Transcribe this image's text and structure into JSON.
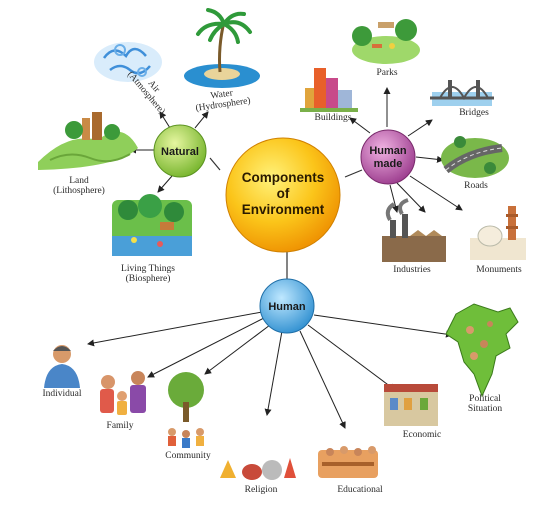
{
  "center": {
    "line1": "Components",
    "line2": "of",
    "line3": "Environment"
  },
  "hubs": {
    "natural": "Natural",
    "human_made_line1": "Human",
    "human_made_line2": "made",
    "human": "Human"
  },
  "natural": {
    "air_line1": "Air",
    "air_line2": "(Atmosphere)",
    "water_line1": "Water",
    "water_line2": "(Hydrosphere)",
    "land_line1": "Land",
    "land_line2": "(Lithosphere)",
    "living_line1": "Living Things",
    "living_line2": "(Biosphere)"
  },
  "human_made": {
    "parks": "Parks",
    "buildings": "Buildings",
    "bridges": "Bridges",
    "roads": "Roads",
    "industries": "Industries",
    "monuments": "Monuments"
  },
  "human": {
    "individual": "Individual",
    "family": "Family",
    "community": "Community",
    "religion": "Religion",
    "educational": "Educational",
    "economic": "Economic",
    "political_line1": "Political",
    "political_line2": "Situation"
  },
  "colors": {
    "center": "#f7b800",
    "natural": "#9acd3a",
    "human_made": "#b34ea3",
    "human": "#46a7e0"
  }
}
